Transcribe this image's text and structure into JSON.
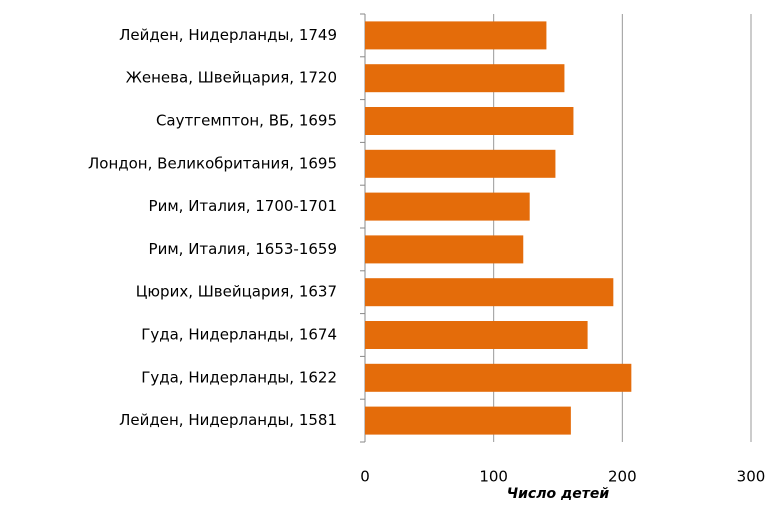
{
  "chart_data": {
    "type": "bar",
    "orientation": "horizontal",
    "categories": [
      "Лейден, Нидерланды, 1749",
      "Женева, Швейцария,  1720",
      "Саутгемптон, ВБ, 1695",
      "Лондон, Великобритания,  1695",
      "Рим, Италия,  1700-1701",
      "Рим, Италия,  1653-1659",
      "Цюрих, Швейцария,  1637",
      "Гуда, Нидерланды, 1674",
      "Гуда, Нидерланды, 1622",
      "Лейден, Нидерланды, 1581"
    ],
    "values": [
      141,
      155,
      162,
      148,
      128,
      123,
      193,
      173,
      207,
      160
    ],
    "color": "#e46c0a",
    "x_label": "Число детей",
    "xlim": [
      0,
      300
    ],
    "xticks": [
      0,
      100,
      200,
      300
    ],
    "grid": true
  }
}
